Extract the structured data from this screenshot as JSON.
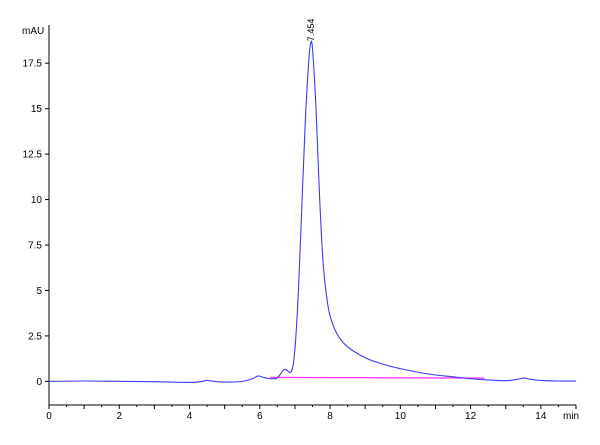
{
  "chart_data": {
    "type": "line",
    "title": "",
    "xlabel": "min",
    "ylabel": "mAU",
    "xlim": [
      0,
      15
    ],
    "ylim": [
      -1.3,
      19.6
    ],
    "grid": false,
    "x_ticks": [
      0,
      2,
      4,
      6,
      8,
      10,
      12,
      14
    ],
    "x_tick_labels": [
      "0",
      "2",
      "4",
      "6",
      "8",
      "10",
      "12",
      "14"
    ],
    "y_ticks": [
      0,
      2.5,
      5,
      7.5,
      10,
      12.5,
      15,
      17.5
    ],
    "y_tick_labels": [
      "0",
      "2.5",
      "5",
      "7.5",
      "10",
      "12.5",
      "15",
      "17.5"
    ],
    "series": [
      {
        "color": "#3a3aff",
        "x": [
          0,
          1,
          2,
          3,
          4,
          4.3,
          4.5,
          4.7,
          5,
          5.5,
          5.8,
          5.95,
          6.1,
          6.3,
          6.5,
          6.7,
          6.9,
          7.0,
          7.1,
          7.2,
          7.3,
          7.4,
          7.45,
          7.5,
          7.6,
          7.7,
          7.8,
          7.9,
          8.0,
          8.2,
          8.5,
          9.0,
          9.5,
          10.0,
          10.5,
          11.0,
          11.5,
          12.0,
          12.5,
          13.0,
          13.3,
          13.5,
          13.7,
          14.0,
          14.5,
          15.0
        ],
        "y": [
          0.0,
          0.02,
          0.0,
          -0.02,
          -0.06,
          -0.02,
          0.05,
          0.0,
          -0.04,
          0.0,
          0.15,
          0.3,
          0.22,
          0.15,
          0.2,
          0.65,
          0.55,
          1.8,
          5.0,
          9.8,
          14.5,
          17.8,
          18.6,
          18.3,
          15.0,
          10.2,
          6.6,
          4.7,
          3.6,
          2.6,
          1.9,
          1.3,
          0.95,
          0.7,
          0.5,
          0.35,
          0.25,
          0.15,
          0.08,
          0.04,
          0.1,
          0.18,
          0.12,
          0.05,
          0.02,
          0.02
        ]
      }
    ],
    "baseline": {
      "color": "#ff33ff",
      "x": [
        6.3,
        12.4
      ],
      "y": [
        0.22,
        0.18
      ]
    },
    "peak_label": {
      "text": "7.454",
      "x": 7.454,
      "y": 18.6
    }
  }
}
